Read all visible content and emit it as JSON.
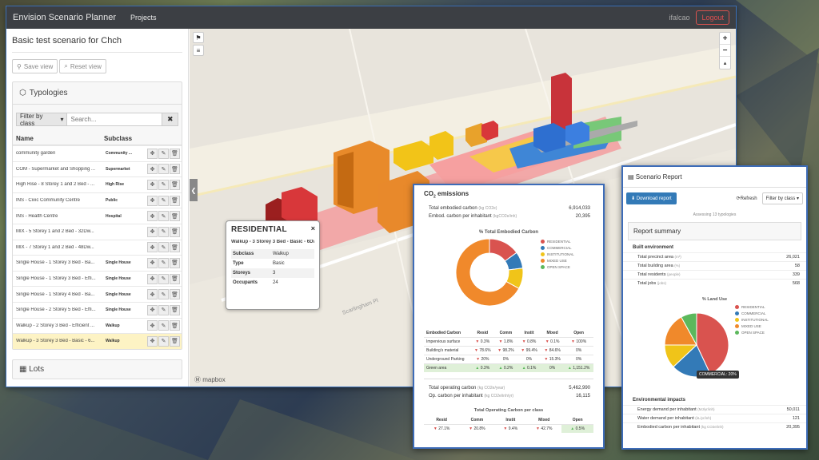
{
  "navbar": {
    "brand": "Envision Scenario Planner",
    "projects": "Projects",
    "user": "ifalcao",
    "logout": "Logout"
  },
  "sidebar": {
    "scenario_title": "Basic test scenario for Chch",
    "save_view": "Save view",
    "reset_view": "Reset view",
    "typologies_title": "Typologies",
    "filter_label": "Filter by class",
    "search_placeholder": "Search...",
    "col_name": "Name",
    "col_subclass": "Subclass",
    "rows": [
      {
        "name": "community garden",
        "subclass": "Community ..."
      },
      {
        "name": "COM - Supermarket and Shopping ...",
        "subclass": "Supermarket"
      },
      {
        "name": "High Rise - 8 Storey 1 and 2 Bed - ...",
        "subclass": "High Rise"
      },
      {
        "name": "INS - Civic Community Centre",
        "subclass": "Public"
      },
      {
        "name": "INS - Health Centre",
        "subclass": "Hospital"
      },
      {
        "name": "MIX - 5 Storey 1 and 2 Bed - 32Dw...",
        "subclass": ""
      },
      {
        "name": "MIX - 7 Storey 1 and 2 Bed - 48Dw...",
        "subclass": ""
      },
      {
        "name": "Single House - 1 Storey 3 Bed - Ba...",
        "subclass": "Single House"
      },
      {
        "name": "Single House - 1 Storey 3 Bed - Effi...",
        "subclass": "Single House"
      },
      {
        "name": "Single House - 1 Storey 4 Bed - Ba...",
        "subclass": "Single House"
      },
      {
        "name": "Single House - 2 Storey 5 Bed - Effi...",
        "subclass": "Single House"
      },
      {
        "name": "Walkup - 2 Storey 3 Bed - Efficient ...",
        "subclass": "Walkup"
      },
      {
        "name": "Walkup - 3 Storey 3 Bed - Basic - 6...",
        "subclass": "Walkup"
      }
    ],
    "lots_title": "Lots"
  },
  "map": {
    "street": "Scarlingham Pl",
    "attribution": "mapbox"
  },
  "popup": {
    "title": "RESIDENTIAL",
    "subtitle": "Walkup - 3 Storey 3 Bed - Basic - 6Dw",
    "rows": [
      {
        "k": "Subclass",
        "v": "Walkup"
      },
      {
        "k": "Type",
        "v": "Basic"
      },
      {
        "k": "Storeys",
        "v": "3"
      },
      {
        "k": "Occupants",
        "v": "24"
      }
    ]
  },
  "co2": {
    "title": "CO2 emissions",
    "total_embodied": {
      "label": "Total embodied carbon",
      "unit": "(kg CO2e)",
      "value": "6,914,033"
    },
    "embodied_per": {
      "label": "Embod. carbon per inhabitant",
      "unit": "(kgCO2e/inh)",
      "value": "20,395"
    },
    "chart_title": "% Total Embodied Carbon",
    "legend": [
      "RESIDENTIAL",
      "COMMERCIAL",
      "INSTITUTIONAL",
      "MIXED USE",
      "OPEN SPACE"
    ],
    "table_headers": [
      "Embodied Carbon",
      "Resid",
      "Comm",
      "Instit",
      "Mixed",
      "Open"
    ],
    "table_rows": [
      {
        "name": "Impervious surface",
        "vals": [
          "0.3%",
          "1.8%",
          "0.8%",
          "0.1%",
          "100%"
        ]
      },
      {
        "name": "Building's material",
        "vals": [
          "78.6%",
          "98.2%",
          "99.4%",
          "84.6%",
          "0%"
        ]
      },
      {
        "name": "Underground Parking",
        "vals": [
          "20%",
          "0%",
          "0%",
          "15.3%",
          "0%"
        ]
      },
      {
        "name": "Green area",
        "vals": [
          "0.3%",
          "0.2%",
          "0.1%",
          "0%",
          "1,151.2%"
        ]
      }
    ],
    "total_operating": {
      "label": "Total operating carbon",
      "unit": "(kg CO2e/year)",
      "value": "5,462,990"
    },
    "op_per": {
      "label": "Op. carbon per inhabitant",
      "unit": "(kg CO2e/inh/yr)",
      "value": "16,115"
    },
    "op_title": "Total Operating Carbon per class",
    "op_headers": [
      "Resid",
      "Comm",
      "Instit",
      "Mixed",
      "Open"
    ],
    "op_vals": [
      "27.1%",
      "20.8%",
      "9.4%",
      "42.7%",
      "0.5%"
    ]
  },
  "report": {
    "title": "Scenario Report",
    "download": "Download report",
    "refresh": "Refresh",
    "filter": "Filter by class",
    "assume": "Assessing 13 typologies",
    "summary_title": "Report summary",
    "built_title": "Built environment",
    "built": [
      {
        "label": "Total precinct area",
        "unit": "(m²)",
        "value": "26,021"
      },
      {
        "label": "Total building area",
        "unit": "(%)",
        "value": "58"
      },
      {
        "label": "Total residents",
        "unit": "(people)",
        "value": "339"
      },
      {
        "label": "Total jobs",
        "unit": "(jobs)",
        "value": "568"
      }
    ],
    "landuse_title": "% Land Use",
    "legend": [
      "RESIDENTIAL",
      "COMMERCIAL",
      "INSTITUTIONAL",
      "MIXED USE",
      "OPEN SPACE"
    ],
    "tooltip": "COMMERCIAL: 20%",
    "env_title": "Environmental impacts",
    "env": [
      {
        "label": "Energy demand per inhabitant",
        "unit": "(MJ/yr/inh)",
        "value": "50,011"
      },
      {
        "label": "Water demand per inhabitant",
        "unit": "(kL/yr/inh)",
        "value": "121"
      },
      {
        "label": "Embodied carbon per inhabitant",
        "unit": "(kg CO2e/inh)",
        "value": "20,395"
      }
    ]
  },
  "chart_data": [
    {
      "type": "pie",
      "title": "% Total Embodied Carbon",
      "categories": [
        "RESIDENTIAL",
        "COMMERCIAL",
        "INSTITUTIONAL",
        "MIXED USE",
        "OPEN SPACE"
      ],
      "values": [
        15,
        8,
        10,
        67,
        0
      ],
      "colors": [
        "#d9534f",
        "#337ab7",
        "#f0c419",
        "#f0892b",
        "#5cb85c"
      ],
      "donut": true
    },
    {
      "type": "pie",
      "title": "% Land Use",
      "categories": [
        "RESIDENTIAL",
        "COMMERCIAL",
        "INSTITUTIONAL",
        "MIXED USE",
        "OPEN SPACE"
      ],
      "values": [
        43,
        20,
        12,
        17,
        8
      ],
      "colors": [
        "#d9534f",
        "#337ab7",
        "#f0c419",
        "#f0892b",
        "#5cb85c"
      ],
      "donut": false
    }
  ]
}
